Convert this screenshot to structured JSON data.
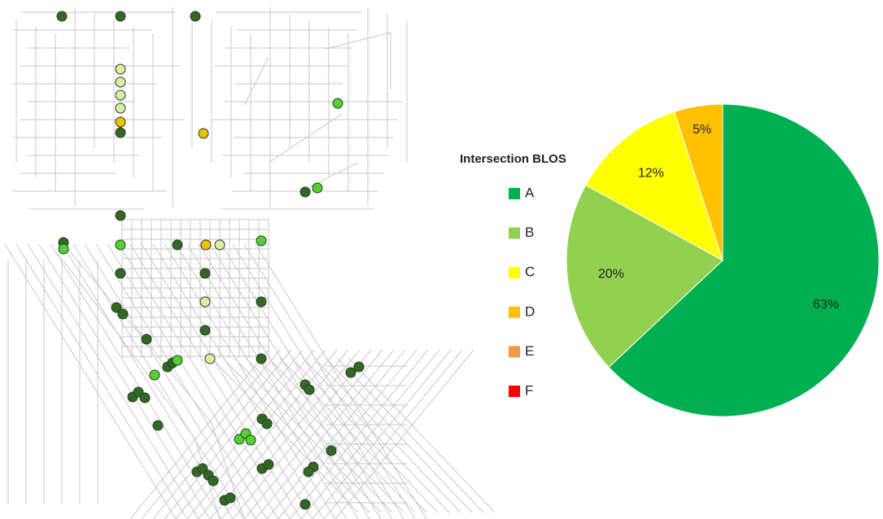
{
  "chart_data": {
    "type": "pie",
    "title": "Intersection BLOS",
    "categories": [
      "A",
      "B",
      "C",
      "D",
      "E",
      "F"
    ],
    "values": [
      63,
      20,
      12,
      5,
      0,
      0
    ],
    "value_labels": [
      "63%",
      "20%",
      "12%",
      "5%",
      null,
      null
    ],
    "colors": [
      "#00b050",
      "#92d050",
      "#ffff00",
      "#ffc000",
      "#f79646",
      "#ff0000"
    ],
    "start_angle": 0,
    "direction": "clockwise"
  }
}
